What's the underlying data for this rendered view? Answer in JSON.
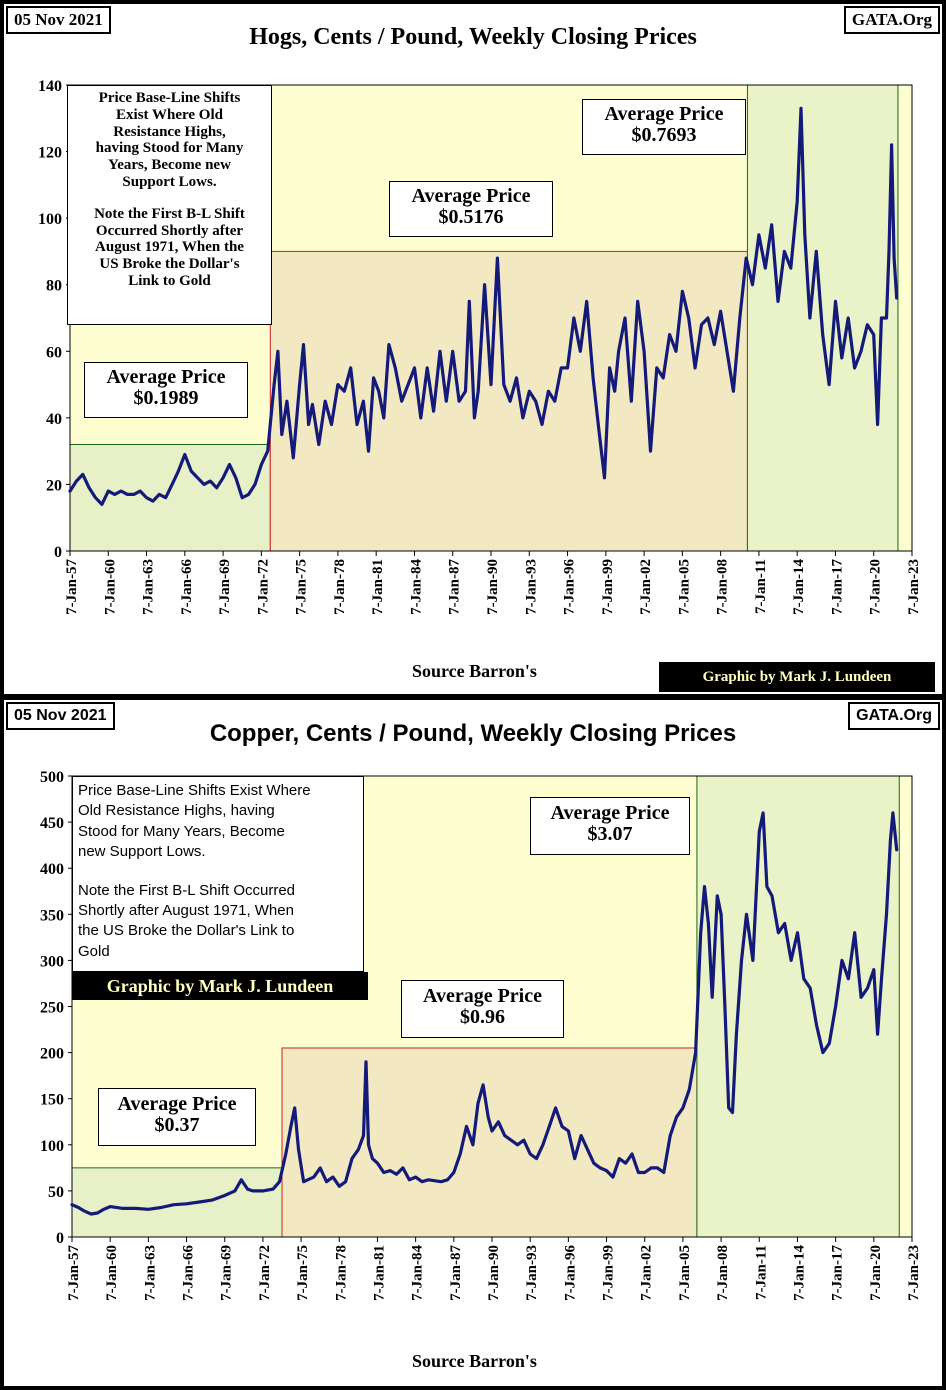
{
  "chart_data": [
    {
      "type": "line",
      "title": "Hogs, Cents / Pound, Weekly Closing Prices",
      "date_label": "05 Nov 2021",
      "brand": "GATA.Org",
      "source": "Source Barron's",
      "credit": "Graphic by Mark J. Lundeen",
      "ylim": [
        0,
        140
      ],
      "yticks": [
        0,
        20,
        40,
        60,
        80,
        100,
        120,
        140
      ],
      "xlim": [
        1957.0,
        2023.0
      ],
      "xtick_years": [
        1957,
        1960,
        1963,
        1966,
        1969,
        1972,
        1975,
        1978,
        1981,
        1984,
        1987,
        1990,
        1993,
        1996,
        1999,
        2002,
        2005,
        2008,
        2011,
        2014,
        2017,
        2020,
        2023
      ],
      "xtick_labels": [
        "7-Jan-57",
        "7-Jan-60",
        "7-Jan-63",
        "7-Jan-66",
        "7-Jan-69",
        "7-Jan-72",
        "7-Jan-75",
        "7-Jan-78",
        "7-Jan-81",
        "7-Jan-84",
        "7-Jan-87",
        "7-Jan-90",
        "7-Jan-93",
        "7-Jan-96",
        "7-Jan-99",
        "7-Jan-02",
        "7-Jan-05",
        "7-Jan-08",
        "7-Jan-11",
        "7-Jan-14",
        "7-Jan-17",
        "7-Jan-20",
        "7-Jan-23"
      ],
      "note_lines": [
        "Price Base-Line Shifts",
        "Exist Where Old",
        "Resistance Highs,",
        "having Stood for Many",
        "Years, Become new",
        "Support Lows.",
        "",
        "Note the First B-L Shift",
        "Occurred Shortly after",
        "August 1971, When the",
        "US Broke the Dollar's",
        "Link to Gold"
      ],
      "regions": [
        {
          "label": "Average Price",
          "value_label": "$0.1989",
          "x_start": 1957.0,
          "x_end": 1972.7,
          "y_top": 32,
          "border": "#1a6a1a",
          "fill": "#e8f0c8"
        },
        {
          "label": "Average Price",
          "value_label": "$0.5176",
          "x_start": 1972.7,
          "x_end": 2010.1,
          "y_top": 90,
          "border": "#cc2222",
          "fill": "#f2e9c2"
        },
        {
          "label": "Average Price",
          "value_label": "$0.7693",
          "x_start": 2010.1,
          "x_end": 2021.9,
          "y_top": 140,
          "border": "#1a6a1a",
          "fill": "#eaf2c8"
        }
      ],
      "series": [
        {
          "color": "#131a7a",
          "x": [
            1957.0,
            1957.5,
            1958.0,
            1958.5,
            1959.0,
            1959.5,
            1960.0,
            1960.5,
            1961.0,
            1961.5,
            1962.0,
            1962.5,
            1963.0,
            1963.5,
            1964.0,
            1964.5,
            1965.0,
            1965.5,
            1966.0,
            1966.5,
            1967.0,
            1967.5,
            1968.0,
            1968.5,
            1969.0,
            1969.5,
            1970.0,
            1970.5,
            1971.0,
            1971.5,
            1972.0,
            1972.5,
            1973.0,
            1973.3,
            1973.6,
            1974.0,
            1974.5,
            1975.0,
            1975.3,
            1975.7,
            1976.0,
            1976.5,
            1977.0,
            1977.5,
            1978.0,
            1978.5,
            1979.0,
            1979.5,
            1980.0,
            1980.4,
            1980.8,
            1981.2,
            1981.6,
            1982.0,
            1982.5,
            1983.0,
            1983.5,
            1984.0,
            1984.5,
            1985.0,
            1985.5,
            1986.0,
            1986.5,
            1987.0,
            1987.5,
            1988.0,
            1988.3,
            1988.7,
            1989.0,
            1989.5,
            1990.0,
            1990.5,
            1991.0,
            1991.5,
            1992.0,
            1992.5,
            1993.0,
            1993.5,
            1994.0,
            1994.5,
            1995.0,
            1995.5,
            1996.0,
            1996.5,
            1997.0,
            1997.5,
            1998.0,
            1998.5,
            1998.9,
            1999.3,
            1999.7,
            2000.0,
            2000.5,
            2001.0,
            2001.5,
            2002.0,
            2002.5,
            2003.0,
            2003.5,
            2004.0,
            2004.5,
            2005.0,
            2005.5,
            2006.0,
            2006.5,
            2007.0,
            2007.5,
            2008.0,
            2008.5,
            2009.0,
            2009.5,
            2010.0,
            2010.5,
            2011.0,
            2011.5,
            2012.0,
            2012.5,
            2013.0,
            2013.5,
            2014.0,
            2014.3,
            2014.6,
            2015.0,
            2015.5,
            2016.0,
            2016.5,
            2017.0,
            2017.5,
            2018.0,
            2018.5,
            2019.0,
            2019.5,
            2020.0,
            2020.3,
            2020.6,
            2021.0,
            2021.2,
            2021.4,
            2021.6,
            2021.8
          ],
          "y": [
            18,
            21,
            23,
            19,
            16,
            14,
            18,
            17,
            18,
            17,
            17,
            18,
            16,
            15,
            17,
            16,
            20,
            24,
            29,
            24,
            22,
            20,
            21,
            19,
            22,
            26,
            22,
            16,
            17,
            20,
            26,
            30,
            50,
            60,
            35,
            45,
            28,
            50,
            62,
            38,
            44,
            32,
            45,
            38,
            50,
            48,
            55,
            38,
            45,
            30,
            52,
            48,
            40,
            62,
            55,
            45,
            50,
            55,
            40,
            55,
            42,
            60,
            45,
            60,
            45,
            48,
            75,
            40,
            48,
            80,
            50,
            88,
            50,
            45,
            52,
            40,
            48,
            45,
            38,
            48,
            45,
            55,
            55,
            70,
            60,
            75,
            52,
            35,
            22,
            55,
            48,
            60,
            70,
            45,
            75,
            60,
            30,
            55,
            52,
            65,
            60,
            78,
            70,
            55,
            68,
            70,
            62,
            72,
            60,
            48,
            70,
            88,
            80,
            95,
            85,
            98,
            75,
            90,
            85,
            105,
            133,
            95,
            70,
            90,
            65,
            50,
            75,
            58,
            70,
            55,
            60,
            68,
            65,
            38,
            70,
            70,
            90,
            122,
            88,
            76
          ]
        }
      ]
    },
    {
      "type": "line",
      "title": "Copper, Cents / Pound, Weekly Closing Prices",
      "date_label": "05 Nov 2021",
      "brand": "GATA.Org",
      "source": "Source Barron's",
      "credit": "Graphic by Mark J. Lundeen",
      "ylim": [
        0,
        500
      ],
      "yticks": [
        0,
        50,
        100,
        150,
        200,
        250,
        300,
        350,
        400,
        450,
        500
      ],
      "xlim": [
        1957.0,
        2023.0
      ],
      "xtick_years": [
        1957,
        1960,
        1963,
        1966,
        1969,
        1972,
        1975,
        1978,
        1981,
        1984,
        1987,
        1990,
        1993,
        1996,
        1999,
        2002,
        2005,
        2008,
        2011,
        2014,
        2017,
        2020,
        2023
      ],
      "xtick_labels": [
        "7-Jan-57",
        "7-Jan-60",
        "7-Jan-63",
        "7-Jan-66",
        "7-Jan-69",
        "7-Jan-72",
        "7-Jan-75",
        "7-Jan-78",
        "7-Jan-81",
        "7-Jan-84",
        "7-Jan-87",
        "7-Jan-90",
        "7-Jan-93",
        "7-Jan-96",
        "7-Jan-99",
        "7-Jan-02",
        "7-Jan-05",
        "7-Jan-08",
        "7-Jan-11",
        "7-Jan-14",
        "7-Jan-17",
        "7-Jan-20",
        "7-Jan-23"
      ],
      "note_lines": [
        "Price Base-Line Shifts Exist Where",
        "Old Resistance Highs,  having",
        "Stood for Many Years, Become",
        "new Support Lows.",
        "",
        "Note the First B-L Shift Occurred",
        "Shortly after August 1971, When",
        "the US Broke the Dollar's Link to",
        "Gold"
      ],
      "regions": [
        {
          "label": "Average Price",
          "value_label": "$0.37",
          "x_start": 1957.0,
          "x_end": 1973.5,
          "y_top": 75,
          "border": "#1a6a1a",
          "fill": "#e8f0c8"
        },
        {
          "label": "Average Price",
          "value_label": "$0.96",
          "x_start": 1973.5,
          "x_end": 2006.1,
          "y_top": 205,
          "border": "#cc2222",
          "fill": "#f2e9c2"
        },
        {
          "label": "Average Price",
          "value_label": "$3.07",
          "x_start": 2006.1,
          "x_end": 2022.0,
          "y_top": 500,
          "border": "#1a6a1a",
          "fill": "#eaf2c8"
        }
      ],
      "series": [
        {
          "color": "#131a7a",
          "x": [
            1957.0,
            1957.5,
            1958.0,
            1958.5,
            1959.0,
            1959.5,
            1960.0,
            1961.0,
            1962.0,
            1963.0,
            1964.0,
            1965.0,
            1966.0,
            1967.0,
            1968.0,
            1969.0,
            1969.8,
            1970.3,
            1970.8,
            1971.2,
            1972.0,
            1972.8,
            1973.3,
            1973.8,
            1974.2,
            1974.5,
            1974.8,
            1975.2,
            1976.0,
            1976.5,
            1977.0,
            1977.5,
            1978.0,
            1978.5,
            1979.0,
            1979.5,
            1979.9,
            1980.1,
            1980.3,
            1980.6,
            1981.0,
            1981.5,
            1982.0,
            1982.5,
            1983.0,
            1983.5,
            1984.0,
            1984.5,
            1985.0,
            1986.0,
            1986.5,
            1987.0,
            1987.5,
            1988.0,
            1988.5,
            1988.9,
            1989.3,
            1989.7,
            1990.0,
            1990.5,
            1991.0,
            1991.5,
            1992.0,
            1992.5,
            1993.0,
            1993.5,
            1994.0,
            1994.5,
            1995.0,
            1995.5,
            1996.0,
            1996.5,
            1997.0,
            1997.5,
            1998.0,
            1998.5,
            1999.0,
            1999.5,
            2000.0,
            2000.5,
            2001.0,
            2001.5,
            2002.0,
            2002.5,
            2003.0,
            2003.5,
            2004.0,
            2004.5,
            2005.0,
            2005.5,
            2006.0,
            2006.4,
            2006.7,
            2007.0,
            2007.3,
            2007.7,
            2008.0,
            2008.3,
            2008.6,
            2008.9,
            2009.2,
            2009.6,
            2010.0,
            2010.5,
            2011.0,
            2011.3,
            2011.6,
            2012.0,
            2012.5,
            2013.0,
            2013.5,
            2014.0,
            2014.5,
            2015.0,
            2015.5,
            2016.0,
            2016.5,
            2017.0,
            2017.5,
            2018.0,
            2018.5,
            2019.0,
            2019.5,
            2020.0,
            2020.3,
            2020.6,
            2021.0,
            2021.3,
            2021.5,
            2021.8
          ],
          "y": [
            35,
            32,
            28,
            25,
            26,
            30,
            33,
            31,
            31,
            30,
            32,
            35,
            36,
            38,
            40,
            45,
            50,
            62,
            52,
            50,
            50,
            52,
            60,
            90,
            120,
            140,
            95,
            60,
            65,
            75,
            60,
            65,
            55,
            60,
            85,
            95,
            110,
            190,
            100,
            85,
            80,
            70,
            72,
            68,
            75,
            62,
            65,
            60,
            62,
            60,
            62,
            70,
            90,
            120,
            100,
            145,
            165,
            130,
            115,
            125,
            110,
            105,
            100,
            105,
            90,
            85,
            100,
            120,
            140,
            120,
            115,
            85,
            110,
            95,
            80,
            75,
            72,
            65,
            85,
            80,
            90,
            70,
            70,
            75,
            75,
            70,
            110,
            130,
            140,
            160,
            200,
            330,
            380,
            340,
            260,
            370,
            350,
            250,
            140,
            135,
            220,
            300,
            350,
            300,
            440,
            460,
            380,
            370,
            330,
            340,
            300,
            330,
            280,
            270,
            230,
            200,
            210,
            250,
            300,
            280,
            330,
            260,
            270,
            290,
            220,
            280,
            350,
            430,
            460,
            420
          ]
        }
      ]
    }
  ]
}
